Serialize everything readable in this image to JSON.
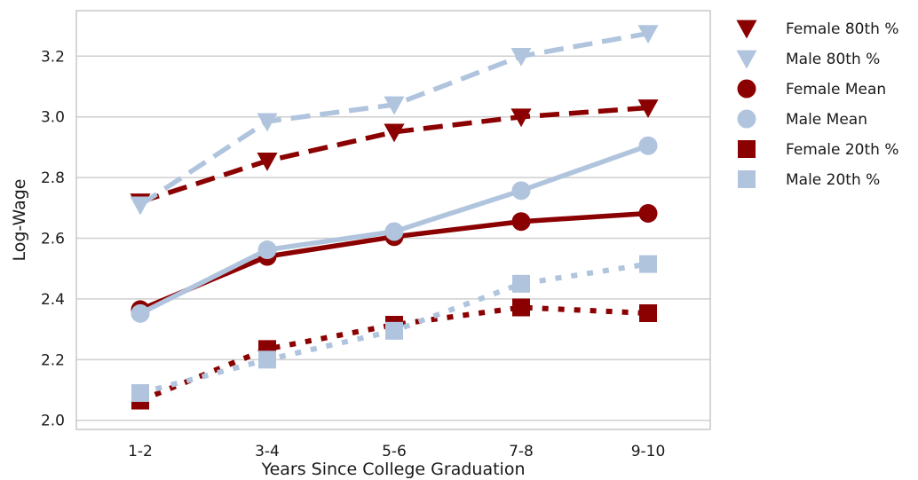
{
  "chart_data": {
    "type": "line",
    "xlabel": "Years Since College Graduation",
    "ylabel": "Log-Wage",
    "categories": [
      "1-2",
      "3-4",
      "5-6",
      "7-8",
      "9-10"
    ],
    "ylim": [
      1.97,
      3.35
    ],
    "yticks": [
      2.0,
      2.2,
      2.4,
      2.6,
      2.8,
      3.0,
      3.2
    ],
    "ytick_labels": [
      "2.0",
      "2.2",
      "2.4",
      "2.6",
      "2.8",
      "3.0",
      "3.2"
    ],
    "grid": "horizontal",
    "legend_position": "outside-right",
    "series": [
      {
        "name": "Female 80th %",
        "values": [
          2.72,
          2.855,
          2.95,
          3.0,
          3.03
        ],
        "color": "#8b0000",
        "marker": "triangle-down",
        "line": "dashed"
      },
      {
        "name": "Male 80th %",
        "values": [
          2.71,
          2.985,
          3.04,
          3.2,
          3.275
        ],
        "color": "#b0c4de",
        "marker": "triangle-down",
        "line": "dashed"
      },
      {
        "name": "Female Mean",
        "values": [
          2.365,
          2.54,
          2.605,
          2.655,
          2.682
        ],
        "color": "#8b0000",
        "marker": "circle",
        "line": "solid"
      },
      {
        "name": "Male Mean",
        "values": [
          2.352,
          2.562,
          2.622,
          2.757,
          2.905
        ],
        "color": "#b0c4de",
        "marker": "circle",
        "line": "solid"
      },
      {
        "name": "Female 20th %",
        "values": [
          2.065,
          2.235,
          2.315,
          2.372,
          2.353
        ],
        "color": "#8b0000",
        "marker": "square",
        "line": "dotted"
      },
      {
        "name": "Male 20th %",
        "values": [
          2.09,
          2.2,
          2.295,
          2.45,
          2.515
        ],
        "color": "#b0c4de",
        "marker": "square",
        "line": "dotted"
      }
    ]
  }
}
